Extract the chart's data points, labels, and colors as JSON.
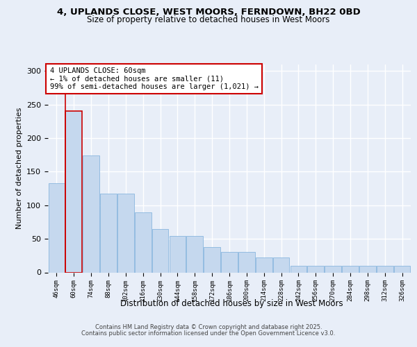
{
  "title_line1": "4, UPLANDS CLOSE, WEST MOORS, FERNDOWN, BH22 0BD",
  "title_line2": "Size of property relative to detached houses in West Moors",
  "xlabel": "Distribution of detached houses by size in West Moors",
  "ylabel": "Number of detached properties",
  "categories": [
    "46sqm",
    "60sqm",
    "74sqm",
    "88sqm",
    "102sqm",
    "116sqm",
    "130sqm",
    "144sqm",
    "158sqm",
    "172sqm",
    "186sqm",
    "200sqm",
    "214sqm",
    "228sqm",
    "242sqm",
    "256sqm",
    "270sqm",
    "284sqm",
    "298sqm",
    "312sqm",
    "326sqm"
  ],
  "values": [
    133,
    240,
    174,
    117,
    117,
    89,
    65,
    54,
    54,
    38,
    30,
    30,
    22,
    22,
    10,
    10,
    10,
    10,
    10,
    10,
    10
  ],
  "highlight_index": 1,
  "bar_color": "#c5d8ee",
  "bar_edge_color": "#7aadda",
  "highlight_edge_color": "#cc0000",
  "annotation_text": "4 UPLANDS CLOSE: 60sqm\n← 1% of detached houses are smaller (11)\n99% of semi-detached houses are larger (1,021) →",
  "annotation_box_edge": "#cc0000",
  "footer_line1": "Contains HM Land Registry data © Crown copyright and database right 2025.",
  "footer_line2": "Contains public sector information licensed under the Open Government Licence v3.0.",
  "ylim": [
    0,
    310
  ],
  "bg_color": "#e8eef8",
  "plot_bg_color": "#e8eef8",
  "grid_color": "#ffffff"
}
